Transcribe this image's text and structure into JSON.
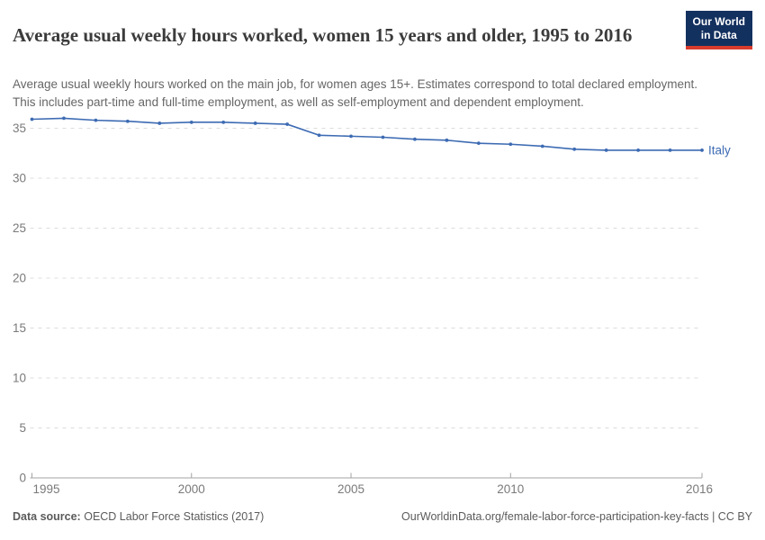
{
  "header": {
    "title": "Average usual weekly hours worked, women 15 years and older, 1995 to 2016",
    "subtitle": "Average usual weekly hours worked on the main job, for women ages 15+. Estimates correspond to total declared employment. This includes part-time and full-time employment, as well as self-employment and dependent employment.",
    "logo": {
      "line1": "Our World",
      "line2": "in Data",
      "bg_color": "#13315F",
      "accent_color": "#D93B2C"
    }
  },
  "chart_data": {
    "type": "line",
    "title": "Average usual weekly hours worked, women 15 years and older, 1995 to 2016",
    "xlabel": "",
    "ylabel": "",
    "xlim": [
      1995,
      2016
    ],
    "ylim": [
      0,
      37
    ],
    "x_ticks": [
      "1995",
      "2000",
      "2005",
      "2010",
      "2016"
    ],
    "y_ticks": [
      "0",
      "5",
      "10",
      "15",
      "20",
      "25",
      "30",
      "35"
    ],
    "grid": "horizontal-dashed",
    "legend_position": "end-of-line-label",
    "x": [
      1995,
      1996,
      1997,
      1998,
      1999,
      2000,
      2001,
      2002,
      2003,
      2004,
      2005,
      2006,
      2007,
      2008,
      2009,
      2010,
      2011,
      2012,
      2013,
      2014,
      2015,
      2016
    ],
    "series": [
      {
        "name": "Italy",
        "color": "#3D6BB3",
        "values": [
          35.9,
          36.0,
          35.8,
          35.7,
          35.5,
          35.6,
          35.6,
          35.5,
          35.4,
          34.3,
          34.2,
          34.1,
          33.9,
          33.8,
          33.5,
          33.4,
          33.2,
          32.9,
          32.8,
          32.8,
          32.8,
          32.8
        ]
      }
    ]
  },
  "footer": {
    "source_label": "Data source:",
    "source_value": "OECD Labor Force Statistics (2017)",
    "credit": "OurWorldinData.org/female-labor-force-participation-key-facts | CC BY"
  }
}
